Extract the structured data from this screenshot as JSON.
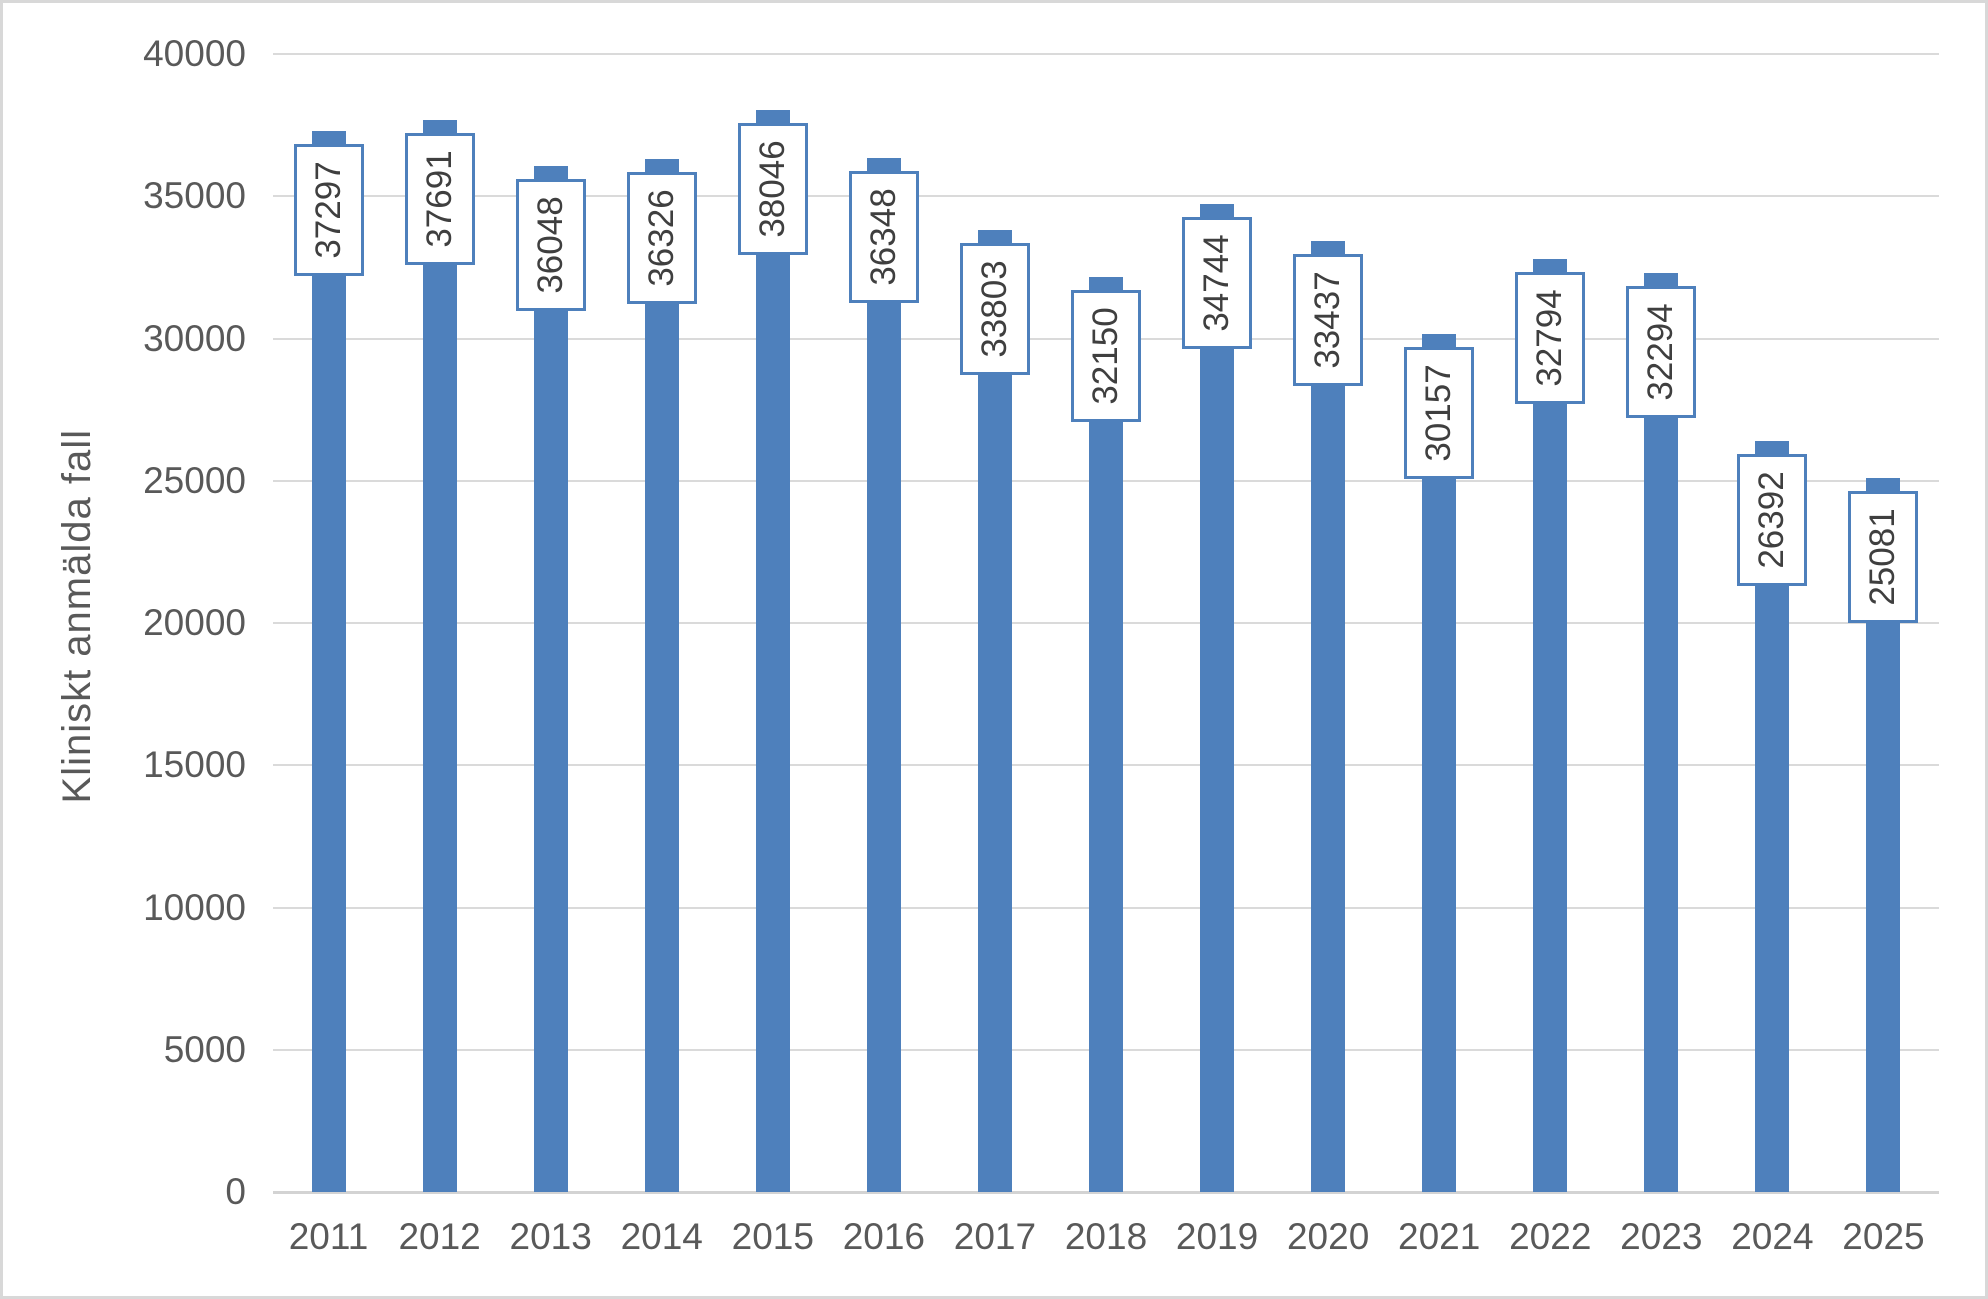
{
  "chart_data": {
    "type": "bar",
    "title": "",
    "xlabel": "",
    "ylabel": "Kliniskt anmälda fall",
    "categories": [
      "2011",
      "2012",
      "2013",
      "2014",
      "2015",
      "2016",
      "2017",
      "2018",
      "2019",
      "2020",
      "2021",
      "2022",
      "2023",
      "2024",
      "2025"
    ],
    "values": [
      37297,
      37691,
      36048,
      36326,
      38046,
      36348,
      33803,
      32150,
      34744,
      33437,
      30157,
      32794,
      32294,
      26392,
      25081
    ],
    "ylim": [
      0,
      40000
    ],
    "yticks": [
      0,
      5000,
      10000,
      15000,
      20000,
      25000,
      30000,
      35000,
      40000
    ],
    "grid": true,
    "legend": "none",
    "data_labels": "inside-end-rotated-boxed",
    "colors": {
      "bar_fill": "#4e80bc",
      "label_box_border": "#4e80bc",
      "label_box_fill": "#ffffff",
      "label_text": "#3f3f3f",
      "axis_text": "#595959",
      "gridline": "#dadada",
      "axis_line": "#d3d3d3",
      "frame_border": "#d8d8d8"
    }
  }
}
